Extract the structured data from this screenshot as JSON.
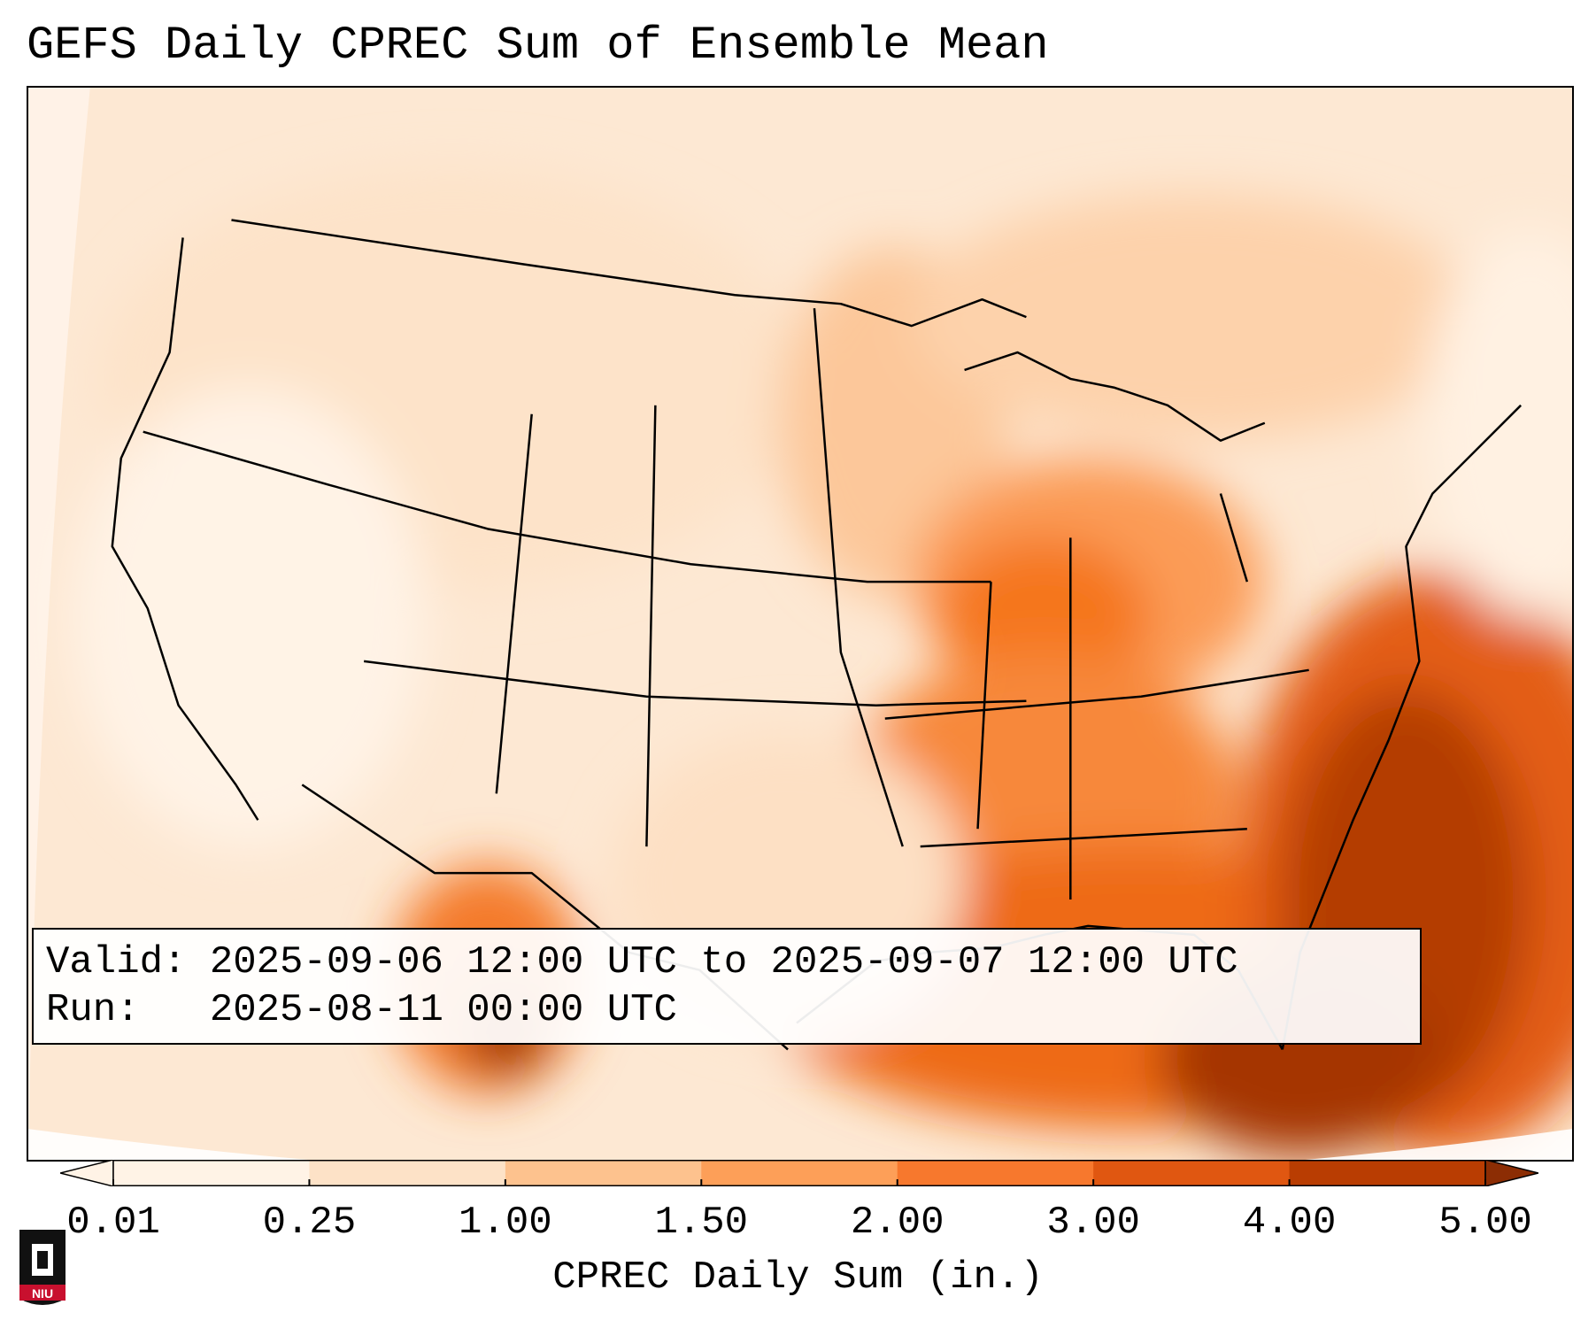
{
  "title": "GEFS Daily CPREC Sum of Ensemble Mean",
  "info": {
    "valid_label": "Valid:",
    "valid_value": "2025-09-06 12:00 UTC to 2025-09-07 12:00 UTC",
    "run_label": "Run:",
    "run_value": "2025-08-11 00:00 UTC"
  },
  "colorbar": {
    "label": "CPREC Daily Sum (in.)",
    "ticks": [
      "0.01",
      "0.25",
      "1.00",
      "1.50",
      "2.00",
      "3.00",
      "4.00",
      "5.00"
    ],
    "colors": [
      "#fff3e6",
      "#fde2c7",
      "#fdc28e",
      "#fd9f58",
      "#f7782d",
      "#e05711",
      "#b93d02",
      "#8c2d04"
    ],
    "extend": "both"
  },
  "map": {
    "region": "Contiguous United States",
    "background_color": "#fde8d3",
    "line_color": "#000000"
  },
  "logo": {
    "text": "NIU",
    "colors": [
      "#c8102e",
      "#000000"
    ]
  }
}
